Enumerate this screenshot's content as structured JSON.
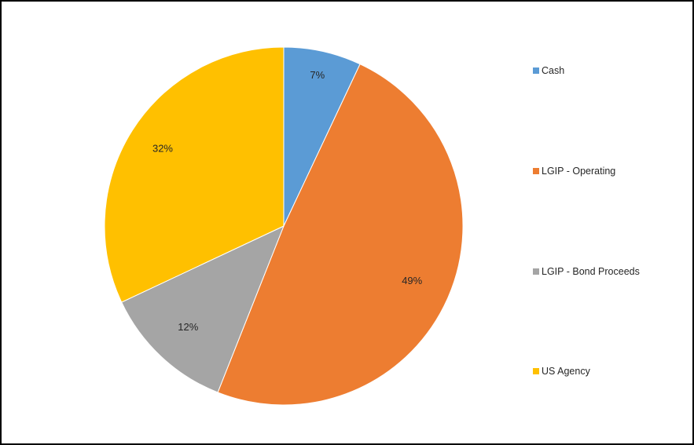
{
  "chart_data": {
    "type": "pie",
    "categories": [
      "Cash",
      "LGIP - Operating",
      "LGIP - Bond Proceeds",
      "US Agency"
    ],
    "values": [
      7,
      49,
      12,
      32
    ],
    "labels": [
      "7%",
      "49%",
      "12%",
      "32%"
    ],
    "colors": [
      "#5B9BD5",
      "#ED7D31",
      "#A5A5A5",
      "#FFC000"
    ],
    "legend_position": "right",
    "start": "top, clockwise"
  }
}
